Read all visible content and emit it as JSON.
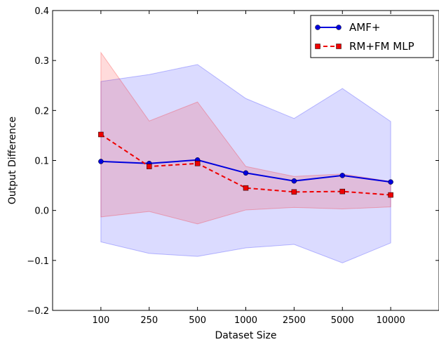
{
  "chart_data": {
    "type": "line",
    "title": "",
    "xlabel": "Dataset Size",
    "ylabel": "Output Difference",
    "categories": [
      "100",
      "250",
      "500",
      "1000",
      "2500",
      "5000",
      "10000"
    ],
    "ylim": [
      -0.2,
      0.4
    ],
    "yticks": [
      -0.2,
      -0.1,
      0.0,
      0.1,
      0.2,
      0.3,
      0.4
    ],
    "ytick_labels": [
      "−0.2",
      "−0.1",
      "0.0",
      "0.1",
      "0.2",
      "0.3",
      "0.4"
    ],
    "grid": false,
    "legend_position": "top-right",
    "series": [
      {
        "name": "AMF+",
        "color": "#0000dd",
        "band_color": "#0000ff",
        "marker": "circle",
        "line_style": "solid",
        "values": [
          0.098,
          0.094,
          0.101,
          0.075,
          0.059,
          0.07,
          0.057
        ],
        "lower": [
          -0.063,
          -0.086,
          -0.092,
          -0.075,
          -0.068,
          -0.105,
          -0.065
        ],
        "upper": [
          0.258,
          0.272,
          0.292,
          0.224,
          0.184,
          0.244,
          0.178
        ]
      },
      {
        "name": "RM+FM MLP",
        "color": "#ee0000",
        "band_color": "#ff0000",
        "marker": "square",
        "line_style": "dashed",
        "values": [
          0.152,
          0.088,
          0.094,
          0.045,
          0.037,
          0.038,
          0.031
        ],
        "lower": [
          -0.013,
          -0.002,
          -0.027,
          0.001,
          0.006,
          0.003,
          0.007
        ],
        "upper": [
          0.316,
          0.179,
          0.217,
          0.088,
          0.068,
          0.073,
          0.058
        ]
      }
    ]
  }
}
